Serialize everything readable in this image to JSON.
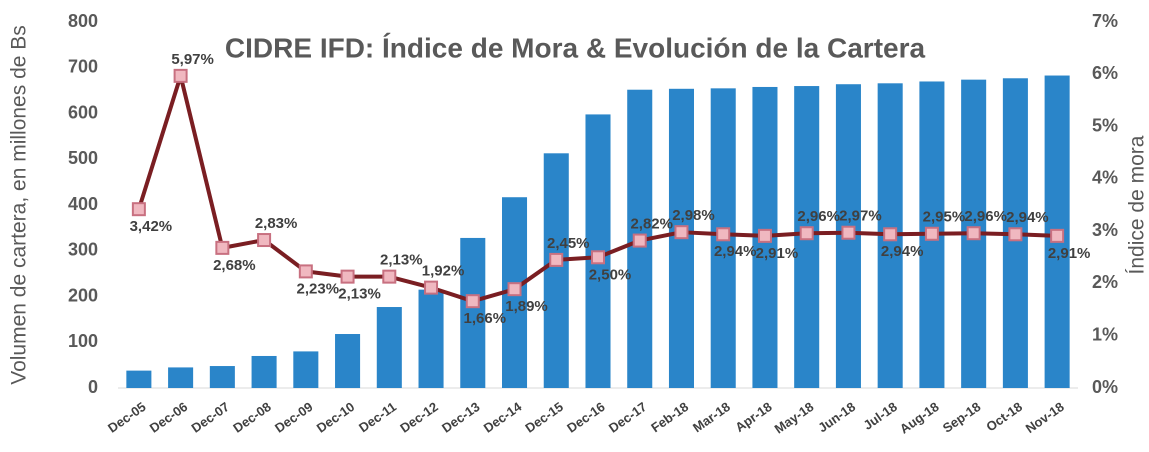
{
  "chart_data": {
    "type": "bar_line",
    "title": "CIDRE IFD: Índice de Mora & Evolución de la Cartera",
    "y_label": "Volumen de cartera, en millones de Bs",
    "y2_label": "Índice de mora",
    "categories": [
      "Dec-05",
      "Dec-06",
      "Dec-07",
      "Dec-08",
      "Dec-09",
      "Dec-10",
      "Dec-11",
      "Dec-12",
      "Dec-13",
      "Dec-14",
      "Dec-15",
      "Dec-16",
      "Dec-17",
      "Feb-18",
      "Mar-18",
      "Apr-18",
      "May-18",
      "Jun-18",
      "Jul-18",
      "Aug-18",
      "Sep-18",
      "Oct-18",
      "Nov-18"
    ],
    "series": [
      {
        "type": "bar",
        "color": "#2a85c9",
        "values": [
          38,
          45,
          48,
          70,
          80,
          118,
          177,
          215,
          328,
          417,
          513,
          598,
          652,
          654,
          655,
          658,
          660,
          664,
          666,
          670,
          674,
          677,
          683
        ]
      },
      {
        "type": "line",
        "axis": "y2",
        "color": "#7a1e22",
        "marker_color": "#f0b8c0",
        "values": [
          3.42,
          5.97,
          2.68,
          2.83,
          2.23,
          2.13,
          2.13,
          1.92,
          1.66,
          1.89,
          2.45,
          2.5,
          2.82,
          2.98,
          2.94,
          2.91,
          2.96,
          2.97,
          2.94,
          2.95,
          2.96,
          2.94,
          2.91
        ],
        "value_labels": [
          "3,42%",
          "5,97%",
          "2,68%",
          "2,83%",
          "2,23%",
          "2,13%",
          "2,13%",
          "1,92%",
          "1,66%",
          "1,89%",
          "2,45%",
          "2,50%",
          "2,82%",
          "2,98%",
          "2,94%",
          "2,91%",
          "2,96%",
          "2,97%",
          "2,94%",
          "2,95%",
          "2,96%",
          "2,94%",
          "2,91%"
        ]
      }
    ],
    "ylim": [
      0,
      800
    ],
    "yticks": [
      0,
      100,
      200,
      300,
      400,
      500,
      600,
      700,
      800
    ],
    "y2lim": [
      0,
      7
    ],
    "y2ticks": [
      {
        "value": 0,
        "label": "0%"
      },
      {
        "value": 1,
        "label": "1%"
      },
      {
        "value": 2,
        "label": "2%"
      },
      {
        "value": 3,
        "label": "3%"
      },
      {
        "value": 4,
        "label": "4%"
      },
      {
        "value": 5,
        "label": "5%"
      },
      {
        "value": 6,
        "label": "6%"
      },
      {
        "value": 7,
        "label": "7%"
      }
    ],
    "grid": false
  }
}
